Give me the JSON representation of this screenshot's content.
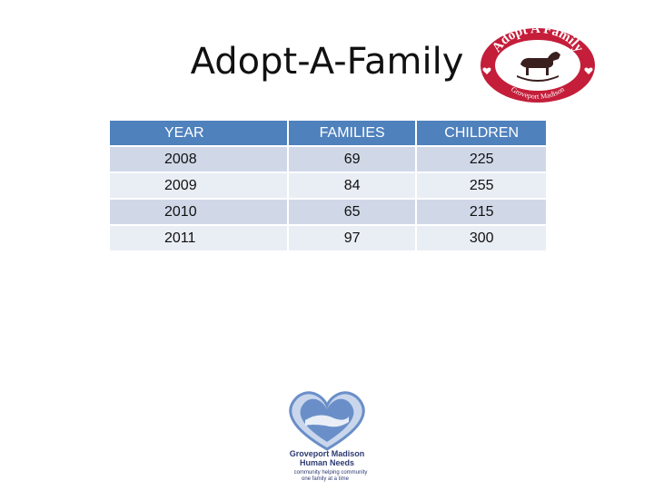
{
  "slide": {
    "title": "Adopt-A-Family"
  },
  "logo_top": {
    "ring_text_top": "Adopt A Family",
    "ring_text_bottom": "Groveport Madison",
    "colors": {
      "ring": "#c41e3a",
      "horse": "#3a1f1f",
      "background": "#ffffff"
    }
  },
  "table": {
    "headers": [
      "YEAR",
      "FAMILIES",
      "CHILDREN"
    ],
    "rows": [
      [
        "2008",
        "69",
        "225"
      ],
      [
        "2009",
        "84",
        "255"
      ],
      [
        "2010",
        "65",
        "215"
      ],
      [
        "2011",
        "97",
        "300"
      ]
    ],
    "colors": {
      "header": "#4f81bd",
      "band_odd": "#d0d8e8",
      "band_even": "#e9edf4"
    }
  },
  "logo_bottom": {
    "line1": "Groveport Madison",
    "line2": "Human Needs",
    "line3": "community helping community",
    "line4": "one family at a time",
    "colors": {
      "heart": "#6a8fc8",
      "text": "#2d3a73"
    }
  }
}
